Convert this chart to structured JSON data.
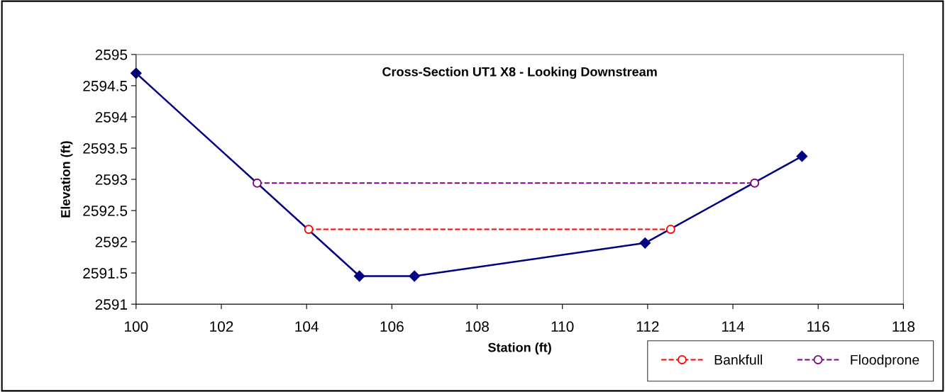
{
  "chart_data": {
    "type": "line",
    "title": "Cross-Section UT1 X8 - Looking Downstream",
    "xlabel": "Station (ft)",
    "ylabel": "Elevation (ft)",
    "xlim": [
      100,
      118
    ],
    "xticks": [
      100,
      102,
      104,
      106,
      108,
      110,
      112,
      114,
      116,
      118
    ],
    "ylim": [
      2591,
      2595
    ],
    "yticks": [
      2591,
      2591.5,
      2592,
      2592.5,
      2593,
      2593.5,
      2594,
      2594.5,
      2595
    ],
    "grid": false,
    "legend": "bottom right",
    "series": [
      {
        "color": "#000080",
        "marker": "diamond",
        "line_style": "solid",
        "x": [
          100,
          105.24,
          106.53,
          111.94,
          115.62
        ],
        "values": [
          2594.7,
          2591.45,
          2591.45,
          2591.98,
          2593.37
        ]
      },
      {
        "name": "Bankfull",
        "color": "#ff0000",
        "marker": "circle",
        "line_style": "dashed",
        "x": [
          104.05,
          112.54
        ],
        "values": [
          2592.2,
          2592.2
        ]
      },
      {
        "name": "Floodprone",
        "color": "#800080",
        "marker": "circle",
        "line_style": "dashed",
        "x": [
          102.84,
          114.51
        ],
        "values": [
          2592.94,
          2592.94
        ]
      }
    ]
  }
}
